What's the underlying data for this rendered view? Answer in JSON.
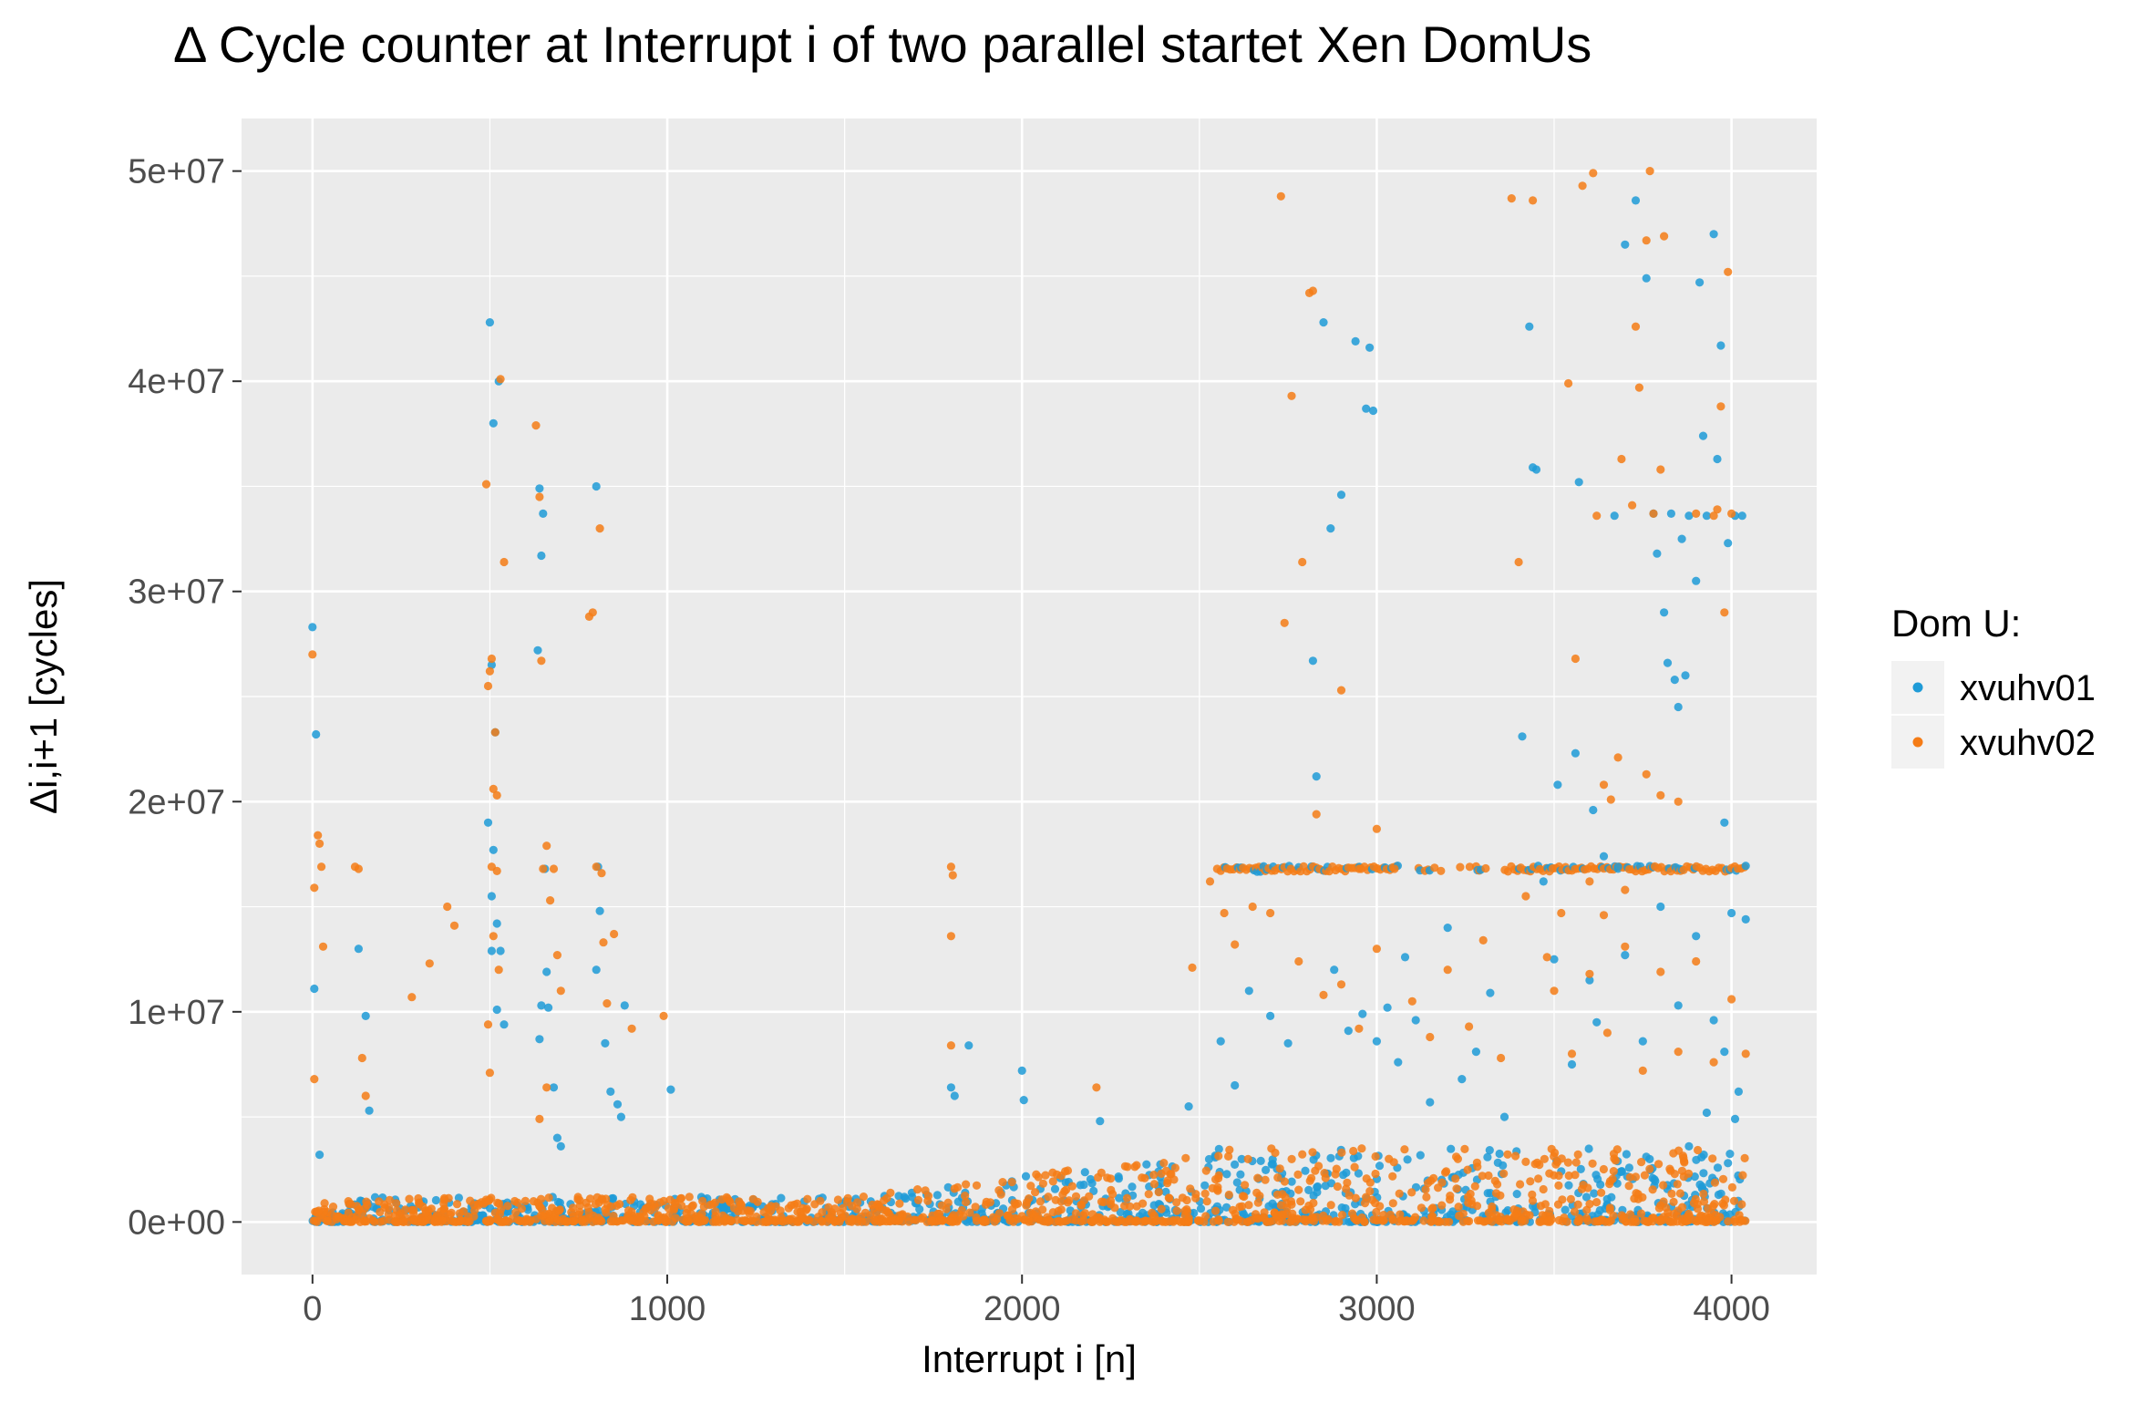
{
  "chart_data": {
    "type": "scatter",
    "title": "Δ Cycle counter at Interrupt i of two parallel startet Xen DomUs",
    "xlabel": "Interrupt i [n]",
    "ylabel": "Δi,i+1 [cycles]",
    "xlim": [
      -200,
      4240
    ],
    "ylim": [
      -2500000,
      52500000
    ],
    "x_ticks": [
      0,
      1000,
      2000,
      3000,
      4000
    ],
    "x_tick_labels": [
      "0",
      "1000",
      "2000",
      "3000",
      "4000"
    ],
    "y_ticks": [
      0,
      10000000,
      20000000,
      30000000,
      40000000,
      50000000
    ],
    "y_tick_labels": [
      "0e+00",
      "1e+07",
      "2e+07",
      "3e+07",
      "4e+07",
      "5e+07"
    ],
    "grid": true,
    "legend": {
      "title": "Dom U:",
      "position": "right"
    },
    "series": [
      {
        "name": "xvuhv01",
        "color": "#1f9bd7",
        "points": [
          [
            0,
            28300000
          ],
          [
            10,
            23200000
          ],
          [
            5,
            11100000
          ],
          [
            20,
            3200000
          ],
          [
            130,
            13000000
          ],
          [
            150,
            9800000
          ],
          [
            160,
            5300000
          ],
          [
            500,
            42800000
          ],
          [
            525,
            40000000
          ],
          [
            510,
            38000000
          ],
          [
            505,
            26500000
          ],
          [
            515,
            23300000
          ],
          [
            495,
            19000000
          ],
          [
            510,
            17700000
          ],
          [
            505,
            12900000
          ],
          [
            520,
            14200000
          ],
          [
            530,
            12900000
          ],
          [
            520,
            10100000
          ],
          [
            540,
            9400000
          ],
          [
            505,
            15500000
          ],
          [
            640,
            34900000
          ],
          [
            645,
            31700000
          ],
          [
            650,
            33700000
          ],
          [
            635,
            27200000
          ],
          [
            655,
            16800000
          ],
          [
            645,
            10300000
          ],
          [
            640,
            8700000
          ],
          [
            660,
            11900000
          ],
          [
            665,
            10200000
          ],
          [
            680,
            6400000
          ],
          [
            690,
            4000000
          ],
          [
            700,
            3600000
          ],
          [
            800,
            35000000
          ],
          [
            805,
            16900000
          ],
          [
            810,
            14800000
          ],
          [
            800,
            12000000
          ],
          [
            825,
            8500000
          ],
          [
            840,
            6200000
          ],
          [
            860,
            5600000
          ],
          [
            870,
            5000000
          ],
          [
            880,
            10300000
          ],
          [
            1010,
            6300000
          ],
          [
            1800,
            6400000
          ],
          [
            1810,
            6000000
          ],
          [
            1850,
            8400000
          ],
          [
            2000,
            7200000
          ],
          [
            2005,
            5800000
          ],
          [
            2220,
            4800000
          ],
          [
            2470,
            5500000
          ],
          [
            2560,
            8600000
          ],
          [
            2600,
            6500000
          ],
          [
            2640,
            11000000
          ],
          [
            2700,
            9800000
          ],
          [
            2750,
            8500000
          ],
          [
            2820,
            26700000
          ],
          [
            2870,
            33000000
          ],
          [
            2850,
            42800000
          ],
          [
            2940,
            41900000
          ],
          [
            2980,
            41600000
          ],
          [
            2970,
            38700000
          ],
          [
            2990,
            38600000
          ],
          [
            2900,
            34600000
          ],
          [
            2830,
            21200000
          ],
          [
            2880,
            12000000
          ],
          [
            2920,
            9100000
          ],
          [
            2960,
            9900000
          ],
          [
            3000,
            8600000
          ],
          [
            3030,
            10200000
          ],
          [
            3060,
            7600000
          ],
          [
            3080,
            12600000
          ],
          [
            3110,
            9600000
          ],
          [
            3150,
            5700000
          ],
          [
            3200,
            14000000
          ],
          [
            3240,
            6800000
          ],
          [
            3280,
            8100000
          ],
          [
            3320,
            10900000
          ],
          [
            3360,
            5000000
          ],
          [
            3430,
            42600000
          ],
          [
            3440,
            35900000
          ],
          [
            3450,
            35800000
          ],
          [
            3410,
            23100000
          ],
          [
            3510,
            20800000
          ],
          [
            3560,
            22300000
          ],
          [
            3570,
            35200000
          ],
          [
            3610,
            19600000
          ],
          [
            3640,
            17400000
          ],
          [
            3670,
            33600000
          ],
          [
            3680,
            16900000
          ],
          [
            3700,
            46500000
          ],
          [
            3730,
            48600000
          ],
          [
            3760,
            44900000
          ],
          [
            3780,
            33700000
          ],
          [
            3790,
            31800000
          ],
          [
            3810,
            29000000
          ],
          [
            3820,
            26600000
          ],
          [
            3830,
            33700000
          ],
          [
            3840,
            25800000
          ],
          [
            3850,
            24500000
          ],
          [
            3860,
            32500000
          ],
          [
            3870,
            26000000
          ],
          [
            3880,
            33600000
          ],
          [
            3900,
            30500000
          ],
          [
            3910,
            44700000
          ],
          [
            3920,
            37400000
          ],
          [
            3930,
            33600000
          ],
          [
            3950,
            47000000
          ],
          [
            3960,
            36300000
          ],
          [
            3970,
            41700000
          ],
          [
            3990,
            32300000
          ],
          [
            4010,
            33600000
          ],
          [
            4030,
            33600000
          ],
          [
            3980,
            19000000
          ],
          [
            3470,
            16200000
          ],
          [
            3500,
            12500000
          ],
          [
            3550,
            7500000
          ],
          [
            3600,
            11500000
          ],
          [
            3620,
            9500000
          ],
          [
            3700,
            12700000
          ],
          [
            3750,
            8600000
          ],
          [
            3800,
            15000000
          ],
          [
            3850,
            10300000
          ],
          [
            3900,
            13600000
          ],
          [
            3950,
            9600000
          ],
          [
            4000,
            14700000
          ],
          [
            4040,
            14400000
          ],
          [
            4020,
            6200000
          ],
          [
            3990,
            2800000
          ],
          [
            4010,
            4900000
          ],
          [
            3980,
            8100000
          ],
          [
            3930,
            5200000
          ],
          [
            3880,
            3600000
          ]
        ]
      },
      {
        "name": "xvuhv02",
        "color": "#f57c16",
        "points": [
          [
            0,
            27000000
          ],
          [
            5,
            15900000
          ],
          [
            15,
            18400000
          ],
          [
            20,
            18000000
          ],
          [
            25,
            16900000
          ],
          [
            5,
            6800000
          ],
          [
            30,
            13100000
          ],
          [
            120,
            16900000
          ],
          [
            130,
            16800000
          ],
          [
            140,
            7800000
          ],
          [
            150,
            6000000
          ],
          [
            280,
            10700000
          ],
          [
            330,
            12300000
          ],
          [
            380,
            15000000
          ],
          [
            400,
            14100000
          ],
          [
            490,
            35100000
          ],
          [
            505,
            26800000
          ],
          [
            500,
            26200000
          ],
          [
            495,
            25500000
          ],
          [
            515,
            23300000
          ],
          [
            510,
            20600000
          ],
          [
            520,
            20300000
          ],
          [
            540,
            31400000
          ],
          [
            530,
            40100000
          ],
          [
            505,
            16900000
          ],
          [
            520,
            16700000
          ],
          [
            510,
            13600000
          ],
          [
            495,
            9400000
          ],
          [
            500,
            7100000
          ],
          [
            525,
            12000000
          ],
          [
            630,
            37900000
          ],
          [
            640,
            34500000
          ],
          [
            645,
            26700000
          ],
          [
            660,
            17900000
          ],
          [
            650,
            16800000
          ],
          [
            680,
            16800000
          ],
          [
            670,
            15300000
          ],
          [
            690,
            12700000
          ],
          [
            700,
            11000000
          ],
          [
            660,
            6400000
          ],
          [
            640,
            4900000
          ],
          [
            780,
            28800000
          ],
          [
            790,
            29000000
          ],
          [
            810,
            33000000
          ],
          [
            800,
            16900000
          ],
          [
            815,
            16600000
          ],
          [
            820,
            13300000
          ],
          [
            830,
            10400000
          ],
          [
            850,
            13700000
          ],
          [
            900,
            9200000
          ],
          [
            990,
            9800000
          ],
          [
            1800,
            16900000
          ],
          [
            1805,
            16500000
          ],
          [
            1800,
            13600000
          ],
          [
            1800,
            8400000
          ],
          [
            2210,
            6400000
          ],
          [
            2480,
            12100000
          ],
          [
            2530,
            16200000
          ],
          [
            2550,
            16800000
          ],
          [
            2570,
            14700000
          ],
          [
            2600,
            13200000
          ],
          [
            2650,
            15000000
          ],
          [
            2700,
            14700000
          ],
          [
            2740,
            28500000
          ],
          [
            2730,
            48800000
          ],
          [
            2760,
            39300000
          ],
          [
            2790,
            31400000
          ],
          [
            2810,
            44200000
          ],
          [
            2820,
            44300000
          ],
          [
            2830,
            19400000
          ],
          [
            2900,
            25300000
          ],
          [
            2950,
            16800000
          ],
          [
            3000,
            18700000
          ],
          [
            3050,
            16800000
          ],
          [
            2780,
            12400000
          ],
          [
            2850,
            10800000
          ],
          [
            2900,
            11300000
          ],
          [
            2950,
            9200000
          ],
          [
            3000,
            13000000
          ],
          [
            3100,
            10500000
          ],
          [
            3150,
            8800000
          ],
          [
            3200,
            12000000
          ],
          [
            3260,
            9300000
          ],
          [
            3300,
            13400000
          ],
          [
            3350,
            7800000
          ],
          [
            3380,
            48700000
          ],
          [
            3400,
            31400000
          ],
          [
            3440,
            48600000
          ],
          [
            3540,
            39900000
          ],
          [
            3560,
            26800000
          ],
          [
            3580,
            49300000
          ],
          [
            3610,
            49900000
          ],
          [
            3620,
            33600000
          ],
          [
            3640,
            20800000
          ],
          [
            3660,
            20100000
          ],
          [
            3680,
            22100000
          ],
          [
            3690,
            36300000
          ],
          [
            3720,
            34100000
          ],
          [
            3730,
            42600000
          ],
          [
            3740,
            39700000
          ],
          [
            3760,
            46700000
          ],
          [
            3770,
            50000000
          ],
          [
            3780,
            33700000
          ],
          [
            3800,
            35800000
          ],
          [
            3810,
            46900000
          ],
          [
            3900,
            33700000
          ],
          [
            3950,
            33600000
          ],
          [
            3960,
            33900000
          ],
          [
            3970,
            38800000
          ],
          [
            3980,
            29000000
          ],
          [
            3990,
            45200000
          ],
          [
            4000,
            33700000
          ],
          [
            3760,
            21300000
          ],
          [
            3800,
            20300000
          ],
          [
            3850,
            20000000
          ],
          [
            3500,
            11000000
          ],
          [
            3550,
            8000000
          ],
          [
            3600,
            11800000
          ],
          [
            3650,
            9000000
          ],
          [
            3700,
            13100000
          ],
          [
            3750,
            7200000
          ],
          [
            3800,
            11900000
          ],
          [
            3850,
            8100000
          ],
          [
            3900,
            12400000
          ],
          [
            3950,
            7600000
          ],
          [
            4000,
            10600000
          ],
          [
            4040,
            8000000
          ],
          [
            3420,
            15500000
          ],
          [
            3480,
            12600000
          ],
          [
            3520,
            14700000
          ],
          [
            3600,
            16200000
          ],
          [
            3640,
            14600000
          ],
          [
            3700,
            15800000
          ]
        ]
      }
    ],
    "horizontal_band": {
      "value": 16800000,
      "x_range": [
        2560,
        4040
      ]
    }
  }
}
